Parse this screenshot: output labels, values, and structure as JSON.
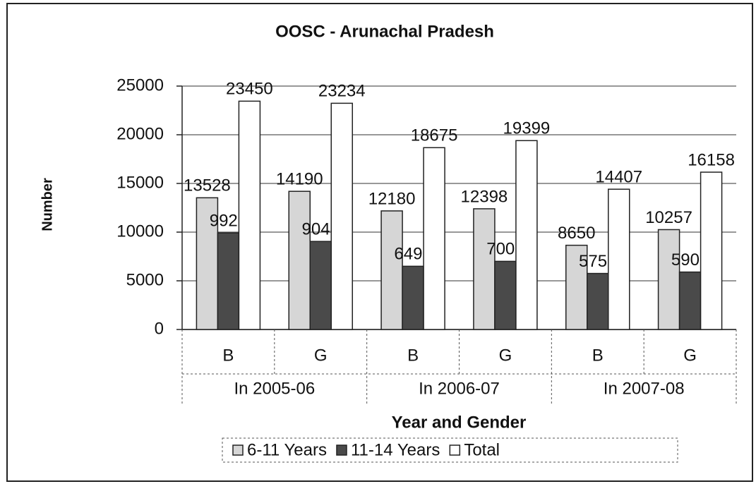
{
  "chart_data": {
    "type": "bar",
    "title": "OOSC - Arunachal Pradesh",
    "xlabel": "Year and Gender",
    "ylabel": "Number",
    "categories": [
      "B",
      "G",
      "B",
      "G",
      "B",
      "G"
    ],
    "groups": [
      "In 2005-06",
      "In 2006-07",
      "In 2007-08"
    ],
    "series": [
      {
        "name": "6-11 Years",
        "color": "#d6d6d6",
        "values": [
          13528,
          14190,
          12180,
          12398,
          8650,
          10257
        ]
      },
      {
        "name": "11-14 Years",
        "color": "#4a4a4a",
        "values": [
          9922,
          9044,
          6495,
          7001,
          5757,
          5901
        ]
      },
      {
        "name": "Total",
        "color": "#ffffff",
        "values": [
          23450,
          23234,
          18675,
          19399,
          14407,
          16158
        ]
      }
    ],
    "ylim": [
      0,
      25000
    ],
    "yticks": [
      0,
      5000,
      10000,
      15000,
      20000,
      25000
    ],
    "grid": true,
    "legend": "bottom"
  }
}
